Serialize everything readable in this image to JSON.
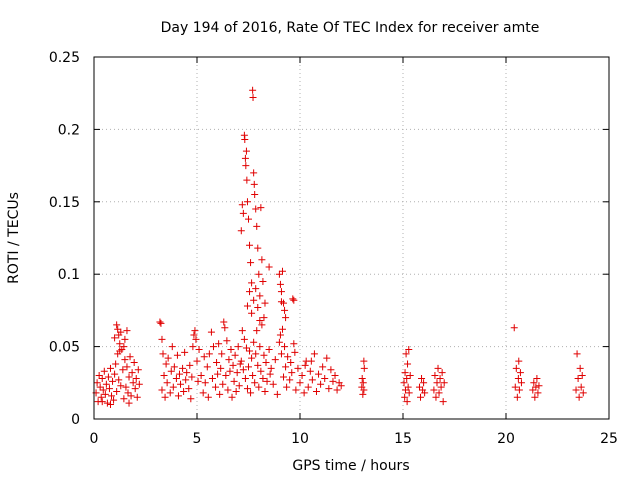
{
  "chart_data": {
    "type": "scatter",
    "title": "Day 194 of 2016, Rate Of TEC Index for receiver amte",
    "xlabel": "GPS time / hours",
    "ylabel": "ROTI / TECUs",
    "xlim": [
      0,
      25
    ],
    "ylim": [
      0,
      0.25
    ],
    "grid": true,
    "marker": "+",
    "color": "#e00000",
    "x_ticks": [
      {
        "value": 0,
        "label": "0"
      },
      {
        "value": 5,
        "label": "5"
      },
      {
        "value": 10,
        "label": "10"
      },
      {
        "value": 15,
        "label": "15"
      },
      {
        "value": 20,
        "label": "20"
      },
      {
        "value": 25,
        "label": "25"
      }
    ],
    "y_ticks": [
      {
        "value": 0,
        "label": "0"
      },
      {
        "value": 0.05,
        "label": "0.05"
      },
      {
        "value": 0.1,
        "label": "0.1"
      },
      {
        "value": 0.15,
        "label": "0.15"
      },
      {
        "value": 0.2,
        "label": "0.2"
      },
      {
        "value": 0.25,
        "label": "0.25"
      }
    ],
    "series": [
      {
        "name": "ROTI",
        "points": [
          [
            0.1,
            0.018
          ],
          [
            0.15,
            0.025
          ],
          [
            0.2,
            0.012
          ],
          [
            0.25,
            0.03
          ],
          [
            0.3,
            0.022
          ],
          [
            0.35,
            0.015
          ],
          [
            0.4,
            0.028
          ],
          [
            0.45,
            0.02
          ],
          [
            0.5,
            0.033
          ],
          [
            0.55,
            0.017
          ],
          [
            0.6,
            0.024
          ],
          [
            0.65,
            0.011
          ],
          [
            0.7,
            0.029
          ],
          [
            0.75,
            0.021
          ],
          [
            0.8,
            0.035
          ],
          [
            0.85,
            0.016
          ],
          [
            0.9,
            0.026
          ],
          [
            0.95,
            0.013
          ],
          [
            1.0,
            0.031
          ],
          [
            1.05,
            0.038
          ],
          [
            1.1,
            0.019
          ],
          [
            1.15,
            0.045
          ],
          [
            1.2,
            0.027
          ],
          [
            1.25,
            0.052
          ],
          [
            1.3,
            0.023
          ],
          [
            1.35,
            0.048
          ],
          [
            1.4,
            0.034
          ],
          [
            1.45,
            0.014
          ],
          [
            1.5,
            0.041
          ],
          [
            1.55,
            0.022
          ],
          [
            1.6,
            0.036
          ],
          [
            1.65,
            0.018
          ],
          [
            1.7,
            0.029
          ],
          [
            1.75,
            0.043
          ],
          [
            1.8,
            0.016
          ],
          [
            1.85,
            0.032
          ],
          [
            1.9,
            0.025
          ],
          [
            1.95,
            0.039
          ],
          [
            2.0,
            0.021
          ],
          [
            2.05,
            0.028
          ],
          [
            2.1,
            0.015
          ],
          [
            2.15,
            0.034
          ],
          [
            2.2,
            0.024
          ],
          [
            1.1,
            0.065
          ],
          [
            1.15,
            0.062
          ],
          [
            1.2,
            0.058
          ],
          [
            1.3,
            0.06
          ],
          [
            1.5,
            0.055
          ],
          [
            1.6,
            0.061
          ],
          [
            1.0,
            0.056
          ],
          [
            1.25,
            0.047
          ],
          [
            1.45,
            0.05
          ],
          [
            0.4,
            0.012
          ],
          [
            0.8,
            0.01
          ],
          [
            1.7,
            0.011
          ],
          [
            3.2,
            0.067
          ],
          [
            3.25,
            0.066
          ],
          [
            3.3,
            0.055
          ],
          [
            3.3,
            0.02
          ],
          [
            3.35,
            0.045
          ],
          [
            3.4,
            0.03
          ],
          [
            3.45,
            0.015
          ],
          [
            3.5,
            0.038
          ],
          [
            3.55,
            0.025
          ],
          [
            3.6,
            0.042
          ],
          [
            3.7,
            0.018
          ],
          [
            3.75,
            0.033
          ],
          [
            3.8,
            0.05
          ],
          [
            3.85,
            0.022
          ],
          [
            3.9,
            0.036
          ],
          [
            4.0,
            0.028
          ],
          [
            4.05,
            0.044
          ],
          [
            4.1,
            0.016
          ],
          [
            4.15,
            0.031
          ],
          [
            4.2,
            0.024
          ],
          [
            4.3,
            0.035
          ],
          [
            4.35,
            0.019
          ],
          [
            4.4,
            0.046
          ],
          [
            4.45,
            0.027
          ],
          [
            4.5,
            0.032
          ],
          [
            4.6,
            0.021
          ],
          [
            4.65,
            0.037
          ],
          [
            4.7,
            0.014
          ],
          [
            4.75,
            0.029
          ],
          [
            4.8,
            0.05
          ],
          [
            4.85,
            0.058
          ],
          [
            4.9,
            0.061
          ],
          [
            4.95,
            0.055
          ],
          [
            5.0,
            0.04
          ],
          [
            5.05,
            0.026
          ],
          [
            5.1,
            0.048
          ],
          [
            5.2,
            0.03
          ],
          [
            5.3,
            0.018
          ],
          [
            5.35,
            0.043
          ],
          [
            5.4,
            0.025
          ],
          [
            5.5,
            0.036
          ],
          [
            5.55,
            0.015
          ],
          [
            5.6,
            0.045
          ],
          [
            5.7,
            0.06
          ],
          [
            5.75,
            0.028
          ],
          [
            5.8,
            0.05
          ],
          [
            5.9,
            0.022
          ],
          [
            5.95,
            0.039
          ],
          [
            6.0,
            0.031
          ],
          [
            6.05,
            0.052
          ],
          [
            6.1,
            0.017
          ],
          [
            6.15,
            0.035
          ],
          [
            6.2,
            0.045
          ],
          [
            6.25,
            0.024
          ],
          [
            6.3,
            0.067
          ],
          [
            6.35,
            0.063
          ],
          [
            6.4,
            0.03
          ],
          [
            6.45,
            0.054
          ],
          [
            6.5,
            0.02
          ],
          [
            6.55,
            0.041
          ],
          [
            6.6,
            0.033
          ],
          [
            6.65,
            0.048
          ],
          [
            6.7,
            0.015
          ],
          [
            6.75,
            0.037
          ],
          [
            6.8,
            0.026
          ],
          [
            6.85,
            0.044
          ],
          [
            6.9,
            0.019
          ],
          [
            6.95,
            0.032
          ],
          [
            7.0,
            0.05
          ],
          [
            7.05,
            0.023
          ],
          [
            7.1,
            0.038
          ],
          [
            7.15,
            0.04
          ],
          [
            7.2,
            0.061
          ],
          [
            7.25,
            0.034
          ],
          [
            7.3,
            0.055
          ],
          [
            7.35,
            0.028
          ],
          [
            7.4,
            0.049
          ],
          [
            7.45,
            0.021
          ],
          [
            7.5,
            0.036
          ],
          [
            7.55,
            0.047
          ],
          [
            7.6,
            0.018
          ],
          [
            7.65,
            0.042
          ],
          [
            7.7,
            0.03
          ],
          [
            7.75,
            0.053
          ],
          [
            7.8,
            0.025
          ],
          [
            7.85,
            0.045
          ],
          [
            7.9,
            0.061
          ],
          [
            7.95,
            0.037
          ],
          [
            8.0,
            0.022
          ],
          [
            8.05,
            0.05
          ],
          [
            8.1,
            0.033
          ],
          [
            8.15,
            0.065
          ],
          [
            8.2,
            0.028
          ],
          [
            8.25,
            0.044
          ],
          [
            8.3,
            0.019
          ],
          [
            8.35,
            0.039
          ],
          [
            8.4,
            0.026
          ],
          [
            8.5,
            0.048
          ],
          [
            8.55,
            0.031
          ],
          [
            8.6,
            0.035
          ],
          [
            8.7,
            0.024
          ],
          [
            8.8,
            0.041
          ],
          [
            8.9,
            0.017
          ],
          [
            9.0,
            0.053
          ],
          [
            9.05,
            0.058
          ],
          [
            9.1,
            0.045
          ],
          [
            9.15,
            0.062
          ],
          [
            9.2,
            0.029
          ],
          [
            9.25,
            0.05
          ],
          [
            9.3,
            0.036
          ],
          [
            9.35,
            0.022
          ],
          [
            9.4,
            0.043
          ],
          [
            9.5,
            0.027
          ],
          [
            9.55,
            0.039
          ],
          [
            9.6,
            0.032
          ],
          [
            9.7,
            0.052
          ],
          [
            9.75,
            0.046
          ],
          [
            7.15,
            0.13
          ],
          [
            7.2,
            0.148
          ],
          [
            7.25,
            0.142
          ],
          [
            7.3,
            0.196
          ],
          [
            7.32,
            0.193
          ],
          [
            7.35,
            0.18
          ],
          [
            7.37,
            0.175
          ],
          [
            7.4,
            0.185
          ],
          [
            7.42,
            0.165
          ],
          [
            7.45,
            0.15
          ],
          [
            7.5,
            0.138
          ],
          [
            7.55,
            0.12
          ],
          [
            7.6,
            0.108
          ],
          [
            7.65,
            0.094
          ],
          [
            7.7,
            0.227
          ],
          [
            7.72,
            0.222
          ],
          [
            7.75,
            0.17
          ],
          [
            7.78,
            0.162
          ],
          [
            7.8,
            0.155
          ],
          [
            7.85,
            0.145
          ],
          [
            7.9,
            0.133
          ],
          [
            7.95,
            0.118
          ],
          [
            8.0,
            0.1
          ],
          [
            8.05,
            0.085
          ],
          [
            8.1,
            0.146
          ],
          [
            8.15,
            0.11
          ],
          [
            8.2,
            0.095
          ],
          [
            8.25,
            0.07
          ],
          [
            8.3,
            0.08
          ],
          [
            8.5,
            0.105
          ],
          [
            7.45,
            0.078
          ],
          [
            7.55,
            0.088
          ],
          [
            7.65,
            0.073
          ],
          [
            7.75,
            0.082
          ],
          [
            7.85,
            0.09
          ],
          [
            7.95,
            0.077
          ],
          [
            8.05,
            0.068
          ],
          [
            9.0,
            0.1
          ],
          [
            9.05,
            0.093
          ],
          [
            9.1,
            0.088
          ],
          [
            9.15,
            0.102
          ],
          [
            9.2,
            0.08
          ],
          [
            9.25,
            0.075
          ],
          [
            9.3,
            0.07
          ],
          [
            9.1,
            0.081
          ],
          [
            9.65,
            0.083
          ],
          [
            9.7,
            0.082
          ],
          [
            9.8,
            0.02
          ],
          [
            9.9,
            0.035
          ],
          [
            10.0,
            0.025
          ],
          [
            10.1,
            0.03
          ],
          [
            10.2,
            0.018
          ],
          [
            10.3,
            0.04
          ],
          [
            10.4,
            0.022
          ],
          [
            10.5,
            0.033
          ],
          [
            10.6,
            0.027
          ],
          [
            10.7,
            0.045
          ],
          [
            10.8,
            0.019
          ],
          [
            10.9,
            0.031
          ],
          [
            11.0,
            0.024
          ],
          [
            11.1,
            0.036
          ],
          [
            11.2,
            0.028
          ],
          [
            11.3,
            0.042
          ],
          [
            11.4,
            0.021
          ],
          [
            11.5,
            0.034
          ],
          [
            11.6,
            0.026
          ],
          [
            11.7,
            0.03
          ],
          [
            11.8,
            0.02
          ],
          [
            11.9,
            0.025
          ],
          [
            12.0,
            0.023
          ],
          [
            10.55,
            0.04
          ],
          [
            10.25,
            0.037
          ],
          [
            13.0,
            0.022
          ],
          [
            13.02,
            0.028
          ],
          [
            13.05,
            0.017
          ],
          [
            13.07,
            0.025
          ],
          [
            13.1,
            0.02
          ],
          [
            13.1,
            0.04
          ],
          [
            13.12,
            0.035
          ],
          [
            15.05,
            0.025
          ],
          [
            15.08,
            0.015
          ],
          [
            15.1,
            0.032
          ],
          [
            15.12,
            0.02
          ],
          [
            15.15,
            0.045
          ],
          [
            15.18,
            0.028
          ],
          [
            15.2,
            0.012
          ],
          [
            15.22,
            0.038
          ],
          [
            15.25,
            0.022
          ],
          [
            15.28,
            0.048
          ],
          [
            15.3,
            0.018
          ],
          [
            15.35,
            0.03
          ],
          [
            15.8,
            0.022
          ],
          [
            15.85,
            0.015
          ],
          [
            15.9,
            0.028
          ],
          [
            15.95,
            0.02
          ],
          [
            16.0,
            0.025
          ],
          [
            16.05,
            0.018
          ],
          [
            16.5,
            0.02
          ],
          [
            16.55,
            0.03
          ],
          [
            16.6,
            0.015
          ],
          [
            16.65,
            0.025
          ],
          [
            16.7,
            0.035
          ],
          [
            16.75,
            0.018
          ],
          [
            16.8,
            0.028
          ],
          [
            16.85,
            0.022
          ],
          [
            16.9,
            0.032
          ],
          [
            16.95,
            0.012
          ],
          [
            17.0,
            0.025
          ],
          [
            20.4,
            0.063
          ],
          [
            20.45,
            0.022
          ],
          [
            20.5,
            0.035
          ],
          [
            20.55,
            0.015
          ],
          [
            20.6,
            0.028
          ],
          [
            20.62,
            0.04
          ],
          [
            20.65,
            0.02
          ],
          [
            20.7,
            0.032
          ],
          [
            20.75,
            0.025
          ],
          [
            21.3,
            0.02
          ],
          [
            21.35,
            0.025
          ],
          [
            21.4,
            0.015
          ],
          [
            21.45,
            0.022
          ],
          [
            21.5,
            0.028
          ],
          [
            21.55,
            0.018
          ],
          [
            21.6,
            0.023
          ],
          [
            23.4,
            0.02
          ],
          [
            23.45,
            0.045
          ],
          [
            23.5,
            0.028
          ],
          [
            23.55,
            0.015
          ],
          [
            23.6,
            0.035
          ],
          [
            23.65,
            0.022
          ],
          [
            23.7,
            0.03
          ],
          [
            23.75,
            0.018
          ]
        ]
      }
    ]
  }
}
